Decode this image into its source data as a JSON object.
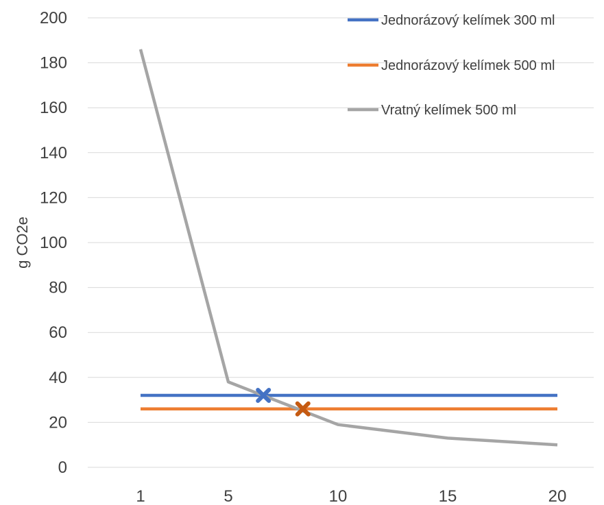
{
  "chart_data": {
    "type": "line",
    "title": "",
    "xlabel": "",
    "ylabel": "g CO2e",
    "x_ticks": [
      1,
      5,
      10,
      15,
      20
    ],
    "y_ticks": [
      0,
      20,
      40,
      60,
      80,
      100,
      120,
      140,
      160,
      180,
      200
    ],
    "xlim": [
      1,
      20
    ],
    "ylim": [
      0,
      200
    ],
    "grid": true,
    "legend_position": "top-right",
    "series": [
      {
        "name": "Jednorázový kelímek 300 ml",
        "color": "#4472c4",
        "x": [
          1,
          20
        ],
        "y": [
          32,
          32
        ]
      },
      {
        "name": "Jednorázový kelímek 500 ml",
        "color": "#ed7d31",
        "x": [
          1,
          20
        ],
        "y": [
          26,
          26
        ]
      },
      {
        "name": "Vratný kelímek 500 ml",
        "color": "#a5a5a5",
        "x": [
          1,
          5,
          10,
          15,
          20
        ],
        "y": [
          186,
          38,
          19,
          13,
          10
        ]
      }
    ],
    "markers": [
      {
        "shape": "x",
        "color": "#4472c4",
        "x": 6.6,
        "y": 32
      },
      {
        "shape": "x",
        "color": "#c55a11",
        "x": 8.4,
        "y": 26
      }
    ]
  }
}
